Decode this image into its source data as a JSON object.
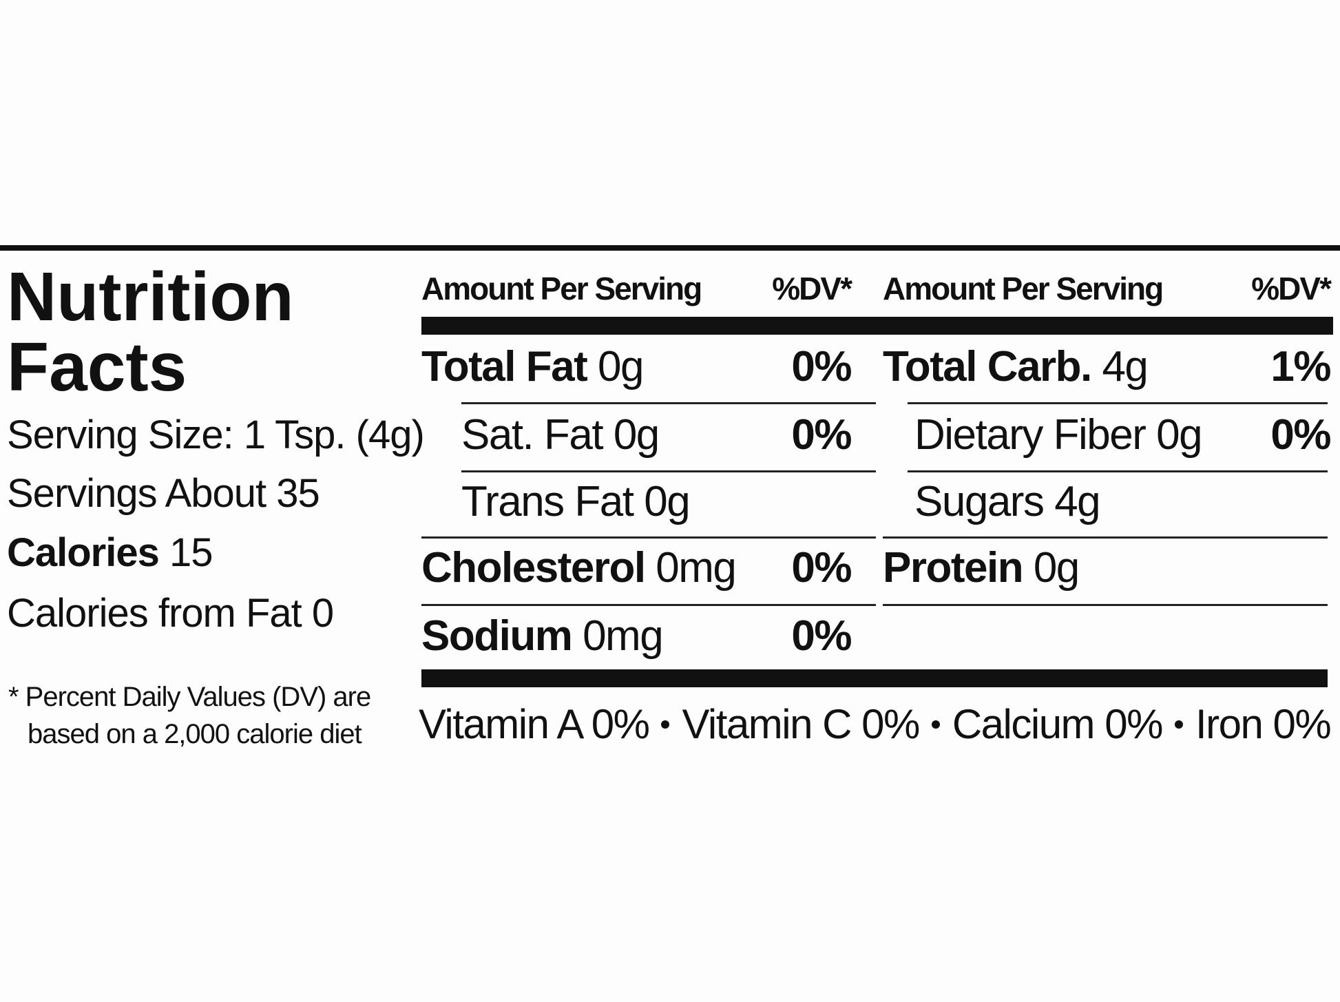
{
  "label": {
    "title": [
      "Nutrition",
      "Facts"
    ],
    "serving_size": "Serving Size: 1 Tsp. (4g)",
    "servings": "Servings About 35",
    "calories": {
      "name": "Calories",
      "amount": "15"
    },
    "calories_from_fat": "Calories from Fat 0",
    "footnote": [
      "* Percent Daily Values (DV) are",
      "based on a 2,000 calorie diet"
    ],
    "header": {
      "amount": "Amount Per Serving",
      "dv": "%DV*"
    },
    "columns": [
      [
        {
          "name": "Total Fat",
          "amount": "0g",
          "dv": "0%",
          "sub": [
            {
              "name": "Sat. Fat",
              "amount": "0g",
              "dv": "0%"
            },
            {
              "name": "Trans Fat",
              "amount": "0g"
            }
          ]
        },
        {
          "name": "Cholesterol",
          "amount": "0mg",
          "dv": "0%"
        },
        {
          "name": "Sodium",
          "amount": "0mg",
          "dv": "0%"
        }
      ],
      [
        {
          "name": "Total Carb.",
          "amount": "4g",
          "dv": "1%",
          "sub": [
            {
              "name": "Dietary Fiber",
              "amount": "0g",
              "dv": "0%"
            },
            {
              "name": "Sugars",
              "amount": "4g"
            }
          ]
        },
        {
          "name": "Protein",
          "amount": "0g"
        }
      ]
    ],
    "vitamins": [
      "Vitamin A 0%",
      "Vitamin C 0%",
      "Calcium 0%",
      "Iron 0%"
    ]
  }
}
